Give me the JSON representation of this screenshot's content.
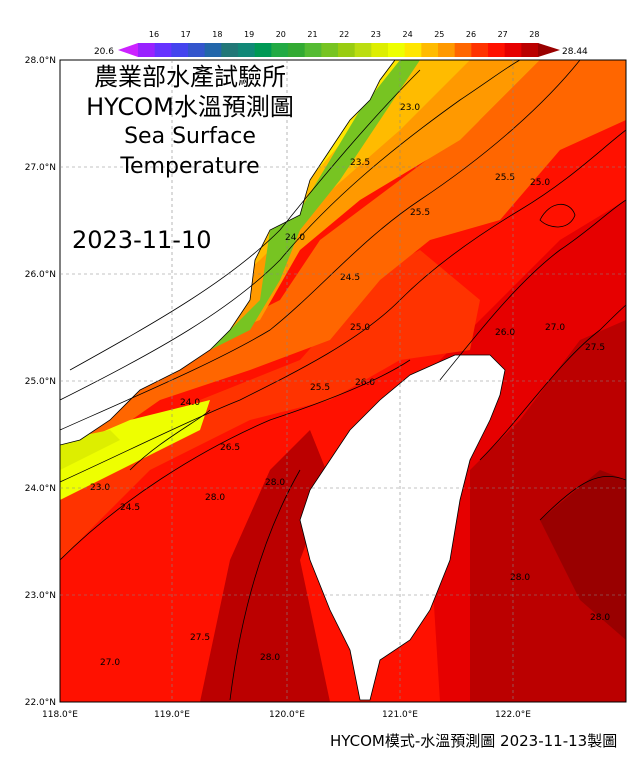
{
  "title_lines": [
    "農業部水產試驗所",
    "HYCOM水溫預測圖",
    "Sea Surface",
    "Temperature"
  ],
  "date": "2023-11-10",
  "footer": "HYCOM模式-水溫預測圖 2023-11-13製圖",
  "colorbar": {
    "min_label": "20.6",
    "max_label": "28.44",
    "tick_labels": [
      "16",
      "17",
      "18",
      "19",
      "20",
      "21",
      "22",
      "23",
      "24",
      "25",
      "26",
      "27",
      "28"
    ],
    "colors": [
      "#cc22ff",
      "#9922ff",
      "#6633ff",
      "#4444ee",
      "#3355cc",
      "#2266aa",
      "#227777",
      "#118877",
      "#009955",
      "#22aa44",
      "#33aa33",
      "#55bb33",
      "#77c422",
      "#99cc11",
      "#bbdd11",
      "#ddee00",
      "#eeff00",
      "#ffe600",
      "#ffbb00",
      "#ff9900",
      "#ff6600",
      "#ff3300",
      "#ff1100",
      "#e60000",
      "#bb0000",
      "#990000"
    ]
  },
  "axes": {
    "lon_labels": [
      "118.0°E",
      "119.0°E",
      "120.0°E",
      "121.0°E",
      "122.0°E"
    ],
    "lat_labels": [
      "28.0°N",
      "27.0°N",
      "26.0°N",
      "25.0°N",
      "24.0°N",
      "23.0°N",
      "22.0°N"
    ]
  },
  "contour_labels": [
    "23.0",
    "23.5",
    "24.0",
    "24.5",
    "25.0",
    "25.5",
    "26.0",
    "26.5",
    "27.0",
    "27.5",
    "28.0"
  ]
}
